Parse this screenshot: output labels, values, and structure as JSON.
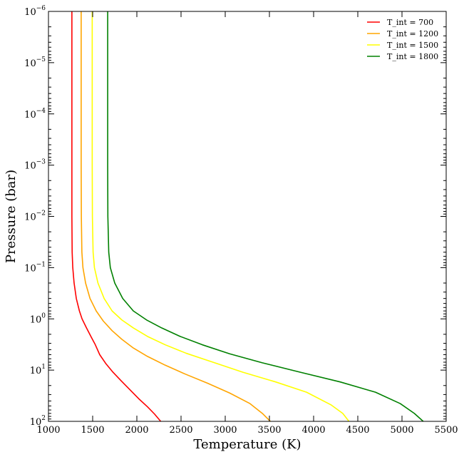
{
  "chart_data": {
    "type": "line",
    "title": "",
    "xlabel": "Temperature (K)",
    "ylabel": "Pressure (bar)",
    "xlim": [
      1000,
      5500
    ],
    "ylim": [
      1e-06,
      100
    ],
    "y_scale": "log",
    "y_inverted": true,
    "grid": false,
    "legend_position": "top-right",
    "x_ticks": [
      1000,
      1500,
      2000,
      2500,
      3000,
      3500,
      4000,
      4500,
      5000,
      5500
    ],
    "x_tick_labels": [
      "1000",
      "1500",
      "2000",
      "2500",
      "3000",
      "3500",
      "4000",
      "4500",
      "5000",
      "5500"
    ],
    "y_ticks": [
      {
        "value": 1e-06,
        "base": "10",
        "exp": "−6"
      },
      {
        "value": 1e-05,
        "base": "10",
        "exp": "−5"
      },
      {
        "value": 0.0001,
        "base": "10",
        "exp": "−4"
      },
      {
        "value": 0.001,
        "base": "10",
        "exp": "−3"
      },
      {
        "value": 0.01,
        "base": "10",
        "exp": "−2"
      },
      {
        "value": 0.1,
        "base": "10",
        "exp": "−1"
      },
      {
        "value": 1,
        "base": "10",
        "exp": "0"
      },
      {
        "value": 10,
        "base": "10",
        "exp": "1"
      },
      {
        "value": 100,
        "base": "10",
        "exp": "2"
      }
    ],
    "series": [
      {
        "name": "T_int = 700",
        "color": "#ff0000",
        "points": [
          [
            1265,
            1e-06
          ],
          [
            1265,
            0.001
          ],
          [
            1265,
            0.01
          ],
          [
            1268,
            0.05
          ],
          [
            1275,
            0.1
          ],
          [
            1290,
            0.2
          ],
          [
            1315,
            0.4
          ],
          [
            1350,
            0.7
          ],
          [
            1380,
            1
          ],
          [
            1430,
            1.5
          ],
          [
            1480,
            2.2
          ],
          [
            1530,
            3.2
          ],
          [
            1580,
            5
          ],
          [
            1650,
            7.5
          ],
          [
            1730,
            11
          ],
          [
            1820,
            16
          ],
          [
            1920,
            24
          ],
          [
            2020,
            36
          ],
          [
            2120,
            52
          ],
          [
            2200,
            72
          ],
          [
            2270,
            100
          ]
        ]
      },
      {
        "name": "T_int = 1200",
        "color": "#ffa500",
        "points": [
          [
            1370,
            1e-06
          ],
          [
            1370,
            0.001
          ],
          [
            1372,
            0.01
          ],
          [
            1378,
            0.05
          ],
          [
            1390,
            0.1
          ],
          [
            1420,
            0.2
          ],
          [
            1470,
            0.4
          ],
          [
            1540,
            0.7
          ],
          [
            1620,
            1.1
          ],
          [
            1720,
            1.7
          ],
          [
            1830,
            2.5
          ],
          [
            1960,
            3.7
          ],
          [
            2120,
            5.4
          ],
          [
            2320,
            8
          ],
          [
            2550,
            12
          ],
          [
            2800,
            18
          ],
          [
            3050,
            28
          ],
          [
            3280,
            45
          ],
          [
            3420,
            70
          ],
          [
            3510,
            100
          ]
        ]
      },
      {
        "name": "T_int = 1500",
        "color": "#ffff00",
        "points": [
          [
            1495,
            1e-06
          ],
          [
            1495,
            0.001
          ],
          [
            1497,
            0.01
          ],
          [
            1505,
            0.05
          ],
          [
            1520,
            0.1
          ],
          [
            1560,
            0.2
          ],
          [
            1630,
            0.4
          ],
          [
            1720,
            0.7
          ],
          [
            1830,
            1.05
          ],
          [
            1960,
            1.5
          ],
          [
            2120,
            2.2
          ],
          [
            2320,
            3.2
          ],
          [
            2560,
            4.7
          ],
          [
            2860,
            7
          ],
          [
            3200,
            11
          ],
          [
            3570,
            17
          ],
          [
            3920,
            27
          ],
          [
            4200,
            48
          ],
          [
            4330,
            70
          ],
          [
            4400,
            100
          ]
        ]
      },
      {
        "name": "T_int = 1800",
        "color": "#008000",
        "points": [
          [
            1670,
            1e-06
          ],
          [
            1670,
            0.001
          ],
          [
            1672,
            0.01
          ],
          [
            1682,
            0.05
          ],
          [
            1700,
            0.1
          ],
          [
            1750,
            0.2
          ],
          [
            1840,
            0.4
          ],
          [
            1960,
            0.7
          ],
          [
            2110,
            1.05
          ],
          [
            2280,
            1.5
          ],
          [
            2490,
            2.2
          ],
          [
            2740,
            3.2
          ],
          [
            3050,
            4.8
          ],
          [
            3420,
            7.2
          ],
          [
            3850,
            11
          ],
          [
            4300,
            17
          ],
          [
            4700,
            27
          ],
          [
            4980,
            45
          ],
          [
            5140,
            70
          ],
          [
            5240,
            100
          ]
        ]
      }
    ]
  }
}
